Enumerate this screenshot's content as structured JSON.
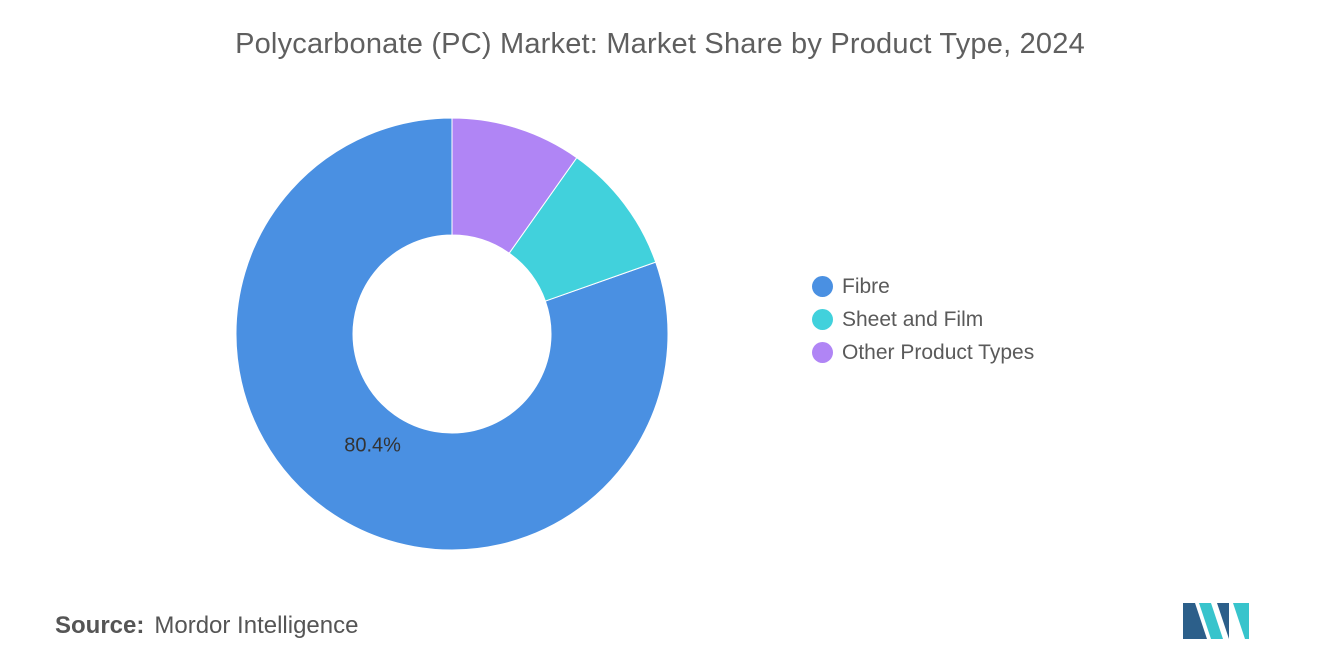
{
  "chart_data": {
    "type": "pie",
    "title": "Polycarbonate (PC) Market: Market Share by Product Type, 2024",
    "categories": [
      "Fibre",
      "Sheet and Film",
      "Other Product Types"
    ],
    "values": [
      80.4,
      9.8,
      9.8
    ],
    "data_labels": [
      "80.4%",
      "",
      ""
    ],
    "colors": [
      "#4a90e2",
      "#41d1dc",
      "#b085f5"
    ],
    "donut": true,
    "legend_position": "right"
  },
  "legend": {
    "items": [
      {
        "label": "Fibre",
        "color": "#4a90e2"
      },
      {
        "label": "Sheet and Film",
        "color": "#41d1dc"
      },
      {
        "label": "Other Product Types",
        "color": "#b085f5"
      }
    ]
  },
  "source": {
    "label": "Source:",
    "value": "Mordor Intelligence"
  },
  "logo": {
    "colors": [
      "#2c5f8a",
      "#38c4cc"
    ]
  }
}
